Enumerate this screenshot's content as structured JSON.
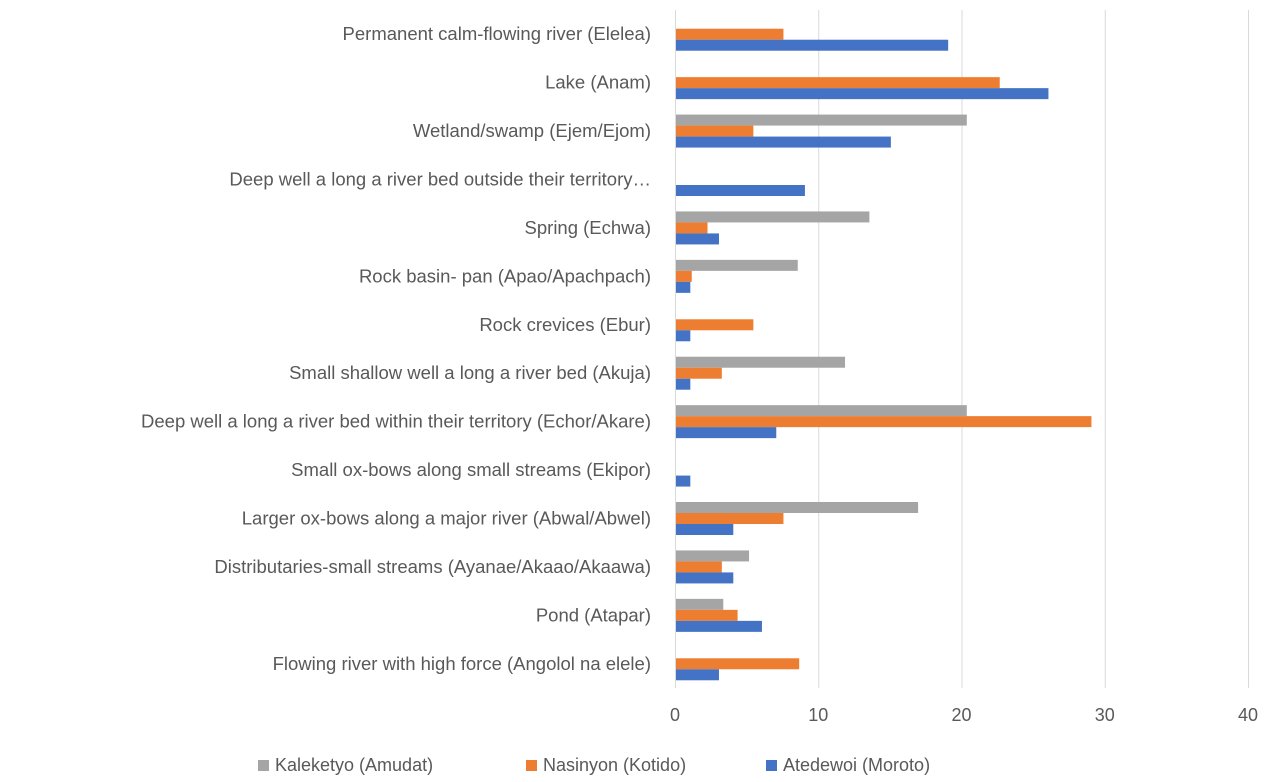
{
  "chart_data": {
    "type": "bar",
    "orientation": "horizontal",
    "categories": [
      "Permanent calm-flowing river (Elelea)",
      "Lake (Anam)",
      "Wetland/swamp (Ejem/Ejom)",
      "Deep well a long a river bed outside their territory…",
      "Spring (Echwa)",
      "Rock basin- pan (Apao/Apachpach)",
      "Rock crevices (Ebur)",
      "Small shallow well a long a river bed (Akuja)",
      "Deep well a long a river bed within their territory (Echor/Akare)",
      "Small ox-bows along small streams (Ekipor)",
      "Larger ox-bows along a major river (Abwal/Abwel)",
      "Distributaries-small streams (Ayanae/Akaao/Akaawa)",
      "Pond (Atapar)",
      "Flowing river with high force  (Angolol na elele)"
    ],
    "series": [
      {
        "name": "Kaleketyo (Amudat)",
        "color": "#a5a5a5",
        "values": [
          0,
          0,
          20.3,
          0,
          13.5,
          8.5,
          0,
          11.8,
          20.3,
          0,
          16.9,
          5.1,
          3.3,
          0
        ]
      },
      {
        "name": "Nasinyon (Kotido)",
        "color": "#ed7d31",
        "values": [
          7.5,
          22.6,
          5.4,
          0,
          2.2,
          1.1,
          5.4,
          3.2,
          29.0,
          0,
          7.5,
          3.2,
          4.3,
          8.6
        ]
      },
      {
        "name": "Atedewoi (Moroto)",
        "color": "#4472c4",
        "values": [
          19.0,
          26.0,
          15.0,
          9.0,
          3.0,
          1.0,
          1.0,
          1.0,
          7.0,
          1.0,
          4.0,
          4.0,
          6.0,
          3.0
        ]
      }
    ],
    "xlim": [
      0,
      40
    ],
    "xticks": [
      "0",
      "10",
      "20",
      "30",
      "40"
    ],
    "grid": true,
    "legend_position": "bottom",
    "legend_order": [
      "Kaleketyo (Amudat)",
      "Nasinyon (Kotido)",
      "Atedewoi (Moroto)"
    ]
  }
}
